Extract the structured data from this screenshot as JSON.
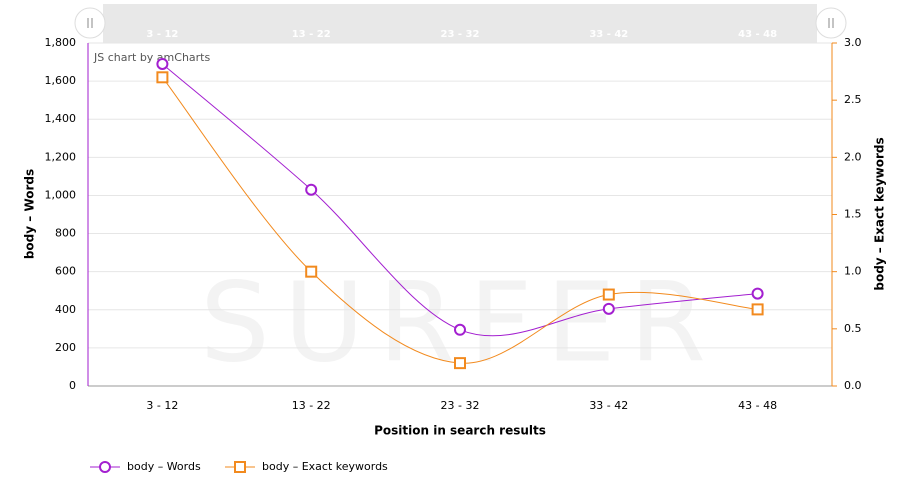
{
  "chart_data": {
    "type": "line",
    "x_label": "Position in search results",
    "y_label": "body – Words",
    "y2_label": "body – Exact keywords",
    "credit": "JS chart by amCharts",
    "watermark": "SURFER",
    "categories": [
      "3 - 12",
      "13 - 22",
      "23 - 32",
      "33 - 42",
      "43 - 48"
    ],
    "series": [
      {
        "name": "body – Words",
        "color": "#a31fd0",
        "marker": "circle",
        "values": [
          1690,
          1030,
          295,
          405,
          485
        ]
      },
      {
        "name": "body – Exact keywords",
        "color": "#f28a1e",
        "marker": "square",
        "axis": "y2",
        "values": [
          2.7,
          1.0,
          0.2,
          0.8,
          0.67
        ]
      }
    ],
    "ylim": [
      0,
      1800
    ],
    "yticks": [
      0,
      200,
      400,
      600,
      800,
      {
        "value": 1000,
        "label": "1,000"
      },
      {
        "value": 1200,
        "label": "1,200"
      },
      {
        "value": 1400,
        "label": "1,400"
      },
      {
        "value": 1600,
        "label": "1,600"
      },
      {
        "value": 1800,
        "label": "1,800"
      }
    ],
    "y2lim": [
      0,
      3
    ],
    "y2ticks": [
      {
        "value": 0,
        "label": "0.0"
      },
      0.5,
      {
        "value": 1,
        "label": "1.0"
      },
      1.5,
      {
        "value": 2,
        "label": "2.0"
      },
      2.5,
      {
        "value": 3,
        "label": "3.0"
      }
    ],
    "grid": true
  }
}
